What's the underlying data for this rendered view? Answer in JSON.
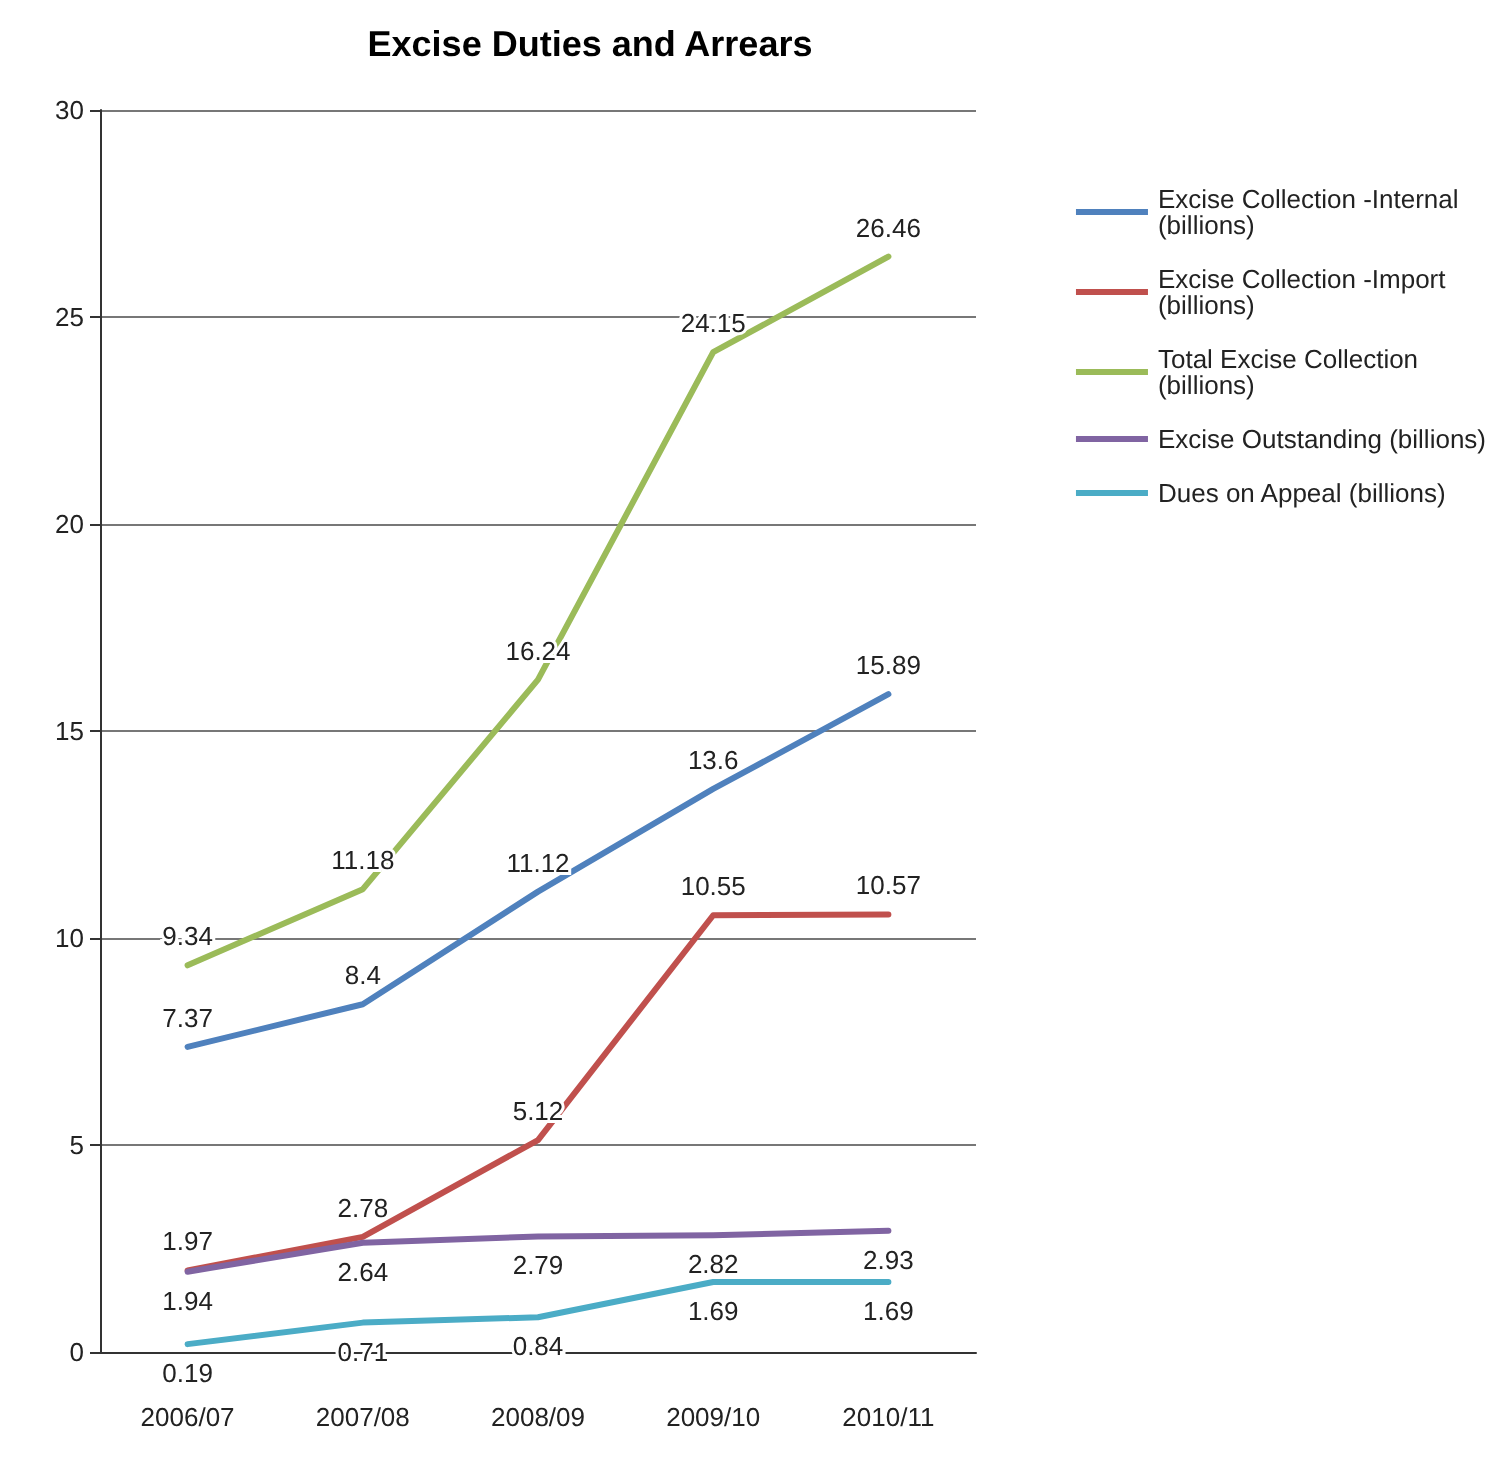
{
  "chart_data": {
    "type": "line",
    "title": "Excise Duties and Arrears",
    "categories": [
      "2006/07",
      "2007/08",
      "2008/09",
      "2009/10",
      "2010/11"
    ],
    "series": [
      {
        "name": "Excise Collection -Internal (billions)",
        "color": "#4f81bd",
        "values": [
          7.37,
          8.4,
          11.12,
          13.6,
          15.89
        ]
      },
      {
        "name": "Excise Collection -Import (billions)",
        "color": "#c0504d",
        "values": [
          1.97,
          2.78,
          5.12,
          10.55,
          10.57
        ]
      },
      {
        "name": "Total Excise Collection (billions)",
        "color": "#9bbb59",
        "values": [
          9.34,
          11.18,
          16.24,
          24.15,
          26.46
        ]
      },
      {
        "name": "Excise Outstanding (billions)",
        "color": "#8064a2",
        "values": [
          1.94,
          2.64,
          2.79,
          2.82,
          2.93
        ]
      },
      {
        "name": "Dues on Appeal (billions)",
        "color": "#4bacc6",
        "values": [
          0.19,
          0.71,
          0.84,
          1.69,
          1.69
        ]
      }
    ],
    "ylim": [
      0,
      30
    ],
    "yticks": [
      0,
      5,
      10,
      15,
      20,
      25,
      30
    ],
    "grid": "y",
    "legend": "right",
    "marker": "none",
    "line_style": "solid",
    "data_labels": true
  }
}
